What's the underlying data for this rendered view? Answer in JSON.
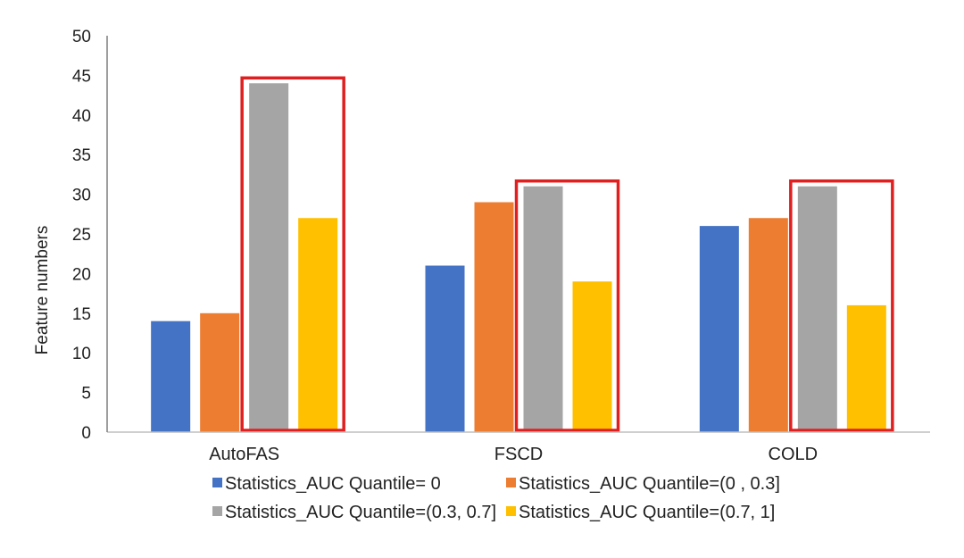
{
  "chart_data": {
    "type": "bar",
    "title": "",
    "xlabel": "",
    "ylabel": "Feature numbers",
    "ylim": [
      0,
      50
    ],
    "yticks": [
      0,
      5,
      10,
      15,
      20,
      25,
      30,
      35,
      40,
      45,
      50
    ],
    "grid": false,
    "categories": [
      "AutoFAS",
      "FSCD",
      "COLD"
    ],
    "series": [
      {
        "name": "Statistics_AUC  Quantile= 0",
        "color": "#4472C4",
        "values": [
          14,
          21,
          26
        ]
      },
      {
        "name": "Statistics_AUC Quantile=(0 , 0.3]",
        "color": "#ED7D31",
        "values": [
          15,
          29,
          27
        ]
      },
      {
        "name": "Statistics_AUC Quantile=(0.3, 0.7]",
        "color": "#A5A5A5",
        "values": [
          44,
          31,
          31
        ]
      },
      {
        "name": "Statistics_AUC Quantile=(0.7,  1]",
        "color": "#FFC000",
        "values": [
          27,
          19,
          16
        ]
      }
    ],
    "highlights": [
      {
        "category": "AutoFAS",
        "series": [
          2,
          3
        ],
        "color": "#E02020"
      },
      {
        "category": "FSCD",
        "series": [
          2,
          3
        ],
        "color": "#E02020"
      },
      {
        "category": "COLD",
        "series": [
          2,
          3
        ],
        "color": "#E02020"
      }
    ],
    "legend_position": "bottom"
  }
}
